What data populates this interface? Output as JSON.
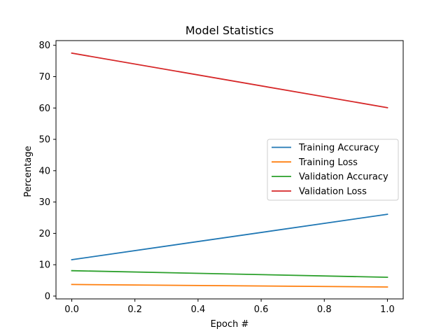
{
  "chart_data": {
    "type": "line",
    "title": "Model Statistics",
    "xlabel": "Epoch #",
    "ylabel": "Percentage",
    "xlim": [
      -0.05,
      1.05
    ],
    "ylim": [
      -0.9,
      81.5
    ],
    "xticks": [
      0.0,
      0.2,
      0.4,
      0.6,
      0.8,
      1.0
    ],
    "xtick_labels": [
      "0.0",
      "0.2",
      "0.4",
      "0.6",
      "0.8",
      "1.0"
    ],
    "yticks": [
      0,
      10,
      20,
      30,
      40,
      50,
      60,
      70,
      80
    ],
    "ytick_labels": [
      "0",
      "10",
      "20",
      "30",
      "40",
      "50",
      "60",
      "70",
      "80"
    ],
    "grid": false,
    "legend_position": "center-right",
    "x": [
      0.0,
      1.0
    ],
    "series": [
      {
        "name": "Training Accuracy",
        "color": "#1f77b4",
        "values": [
          11.6,
          26.1
        ]
      },
      {
        "name": "Training Loss",
        "color": "#ff7f0e",
        "values": [
          3.7,
          2.9
        ]
      },
      {
        "name": "Validation Accuracy",
        "color": "#2ca02c",
        "values": [
          8.1,
          6.0
        ]
      },
      {
        "name": "Validation Loss",
        "color": "#d62728",
        "values": [
          77.5,
          60.1
        ]
      }
    ]
  }
}
